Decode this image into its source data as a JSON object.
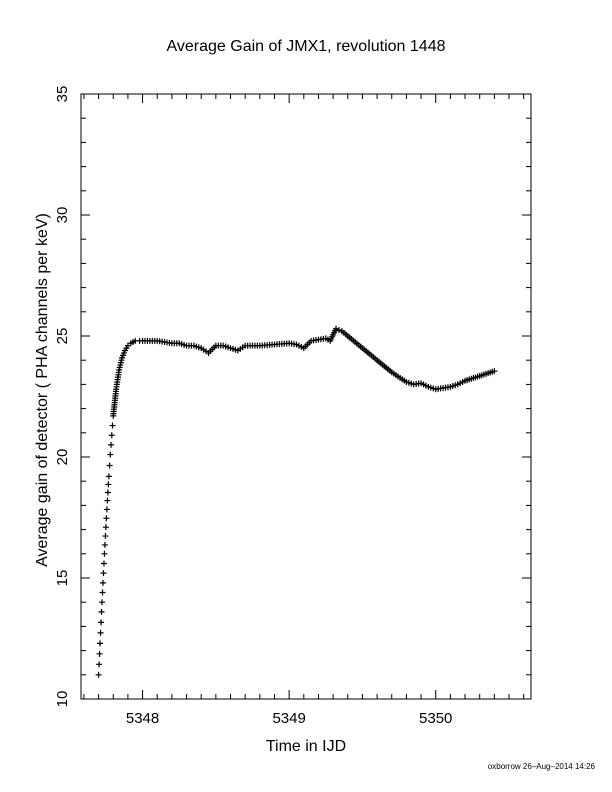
{
  "chart_data": {
    "type": "scatter",
    "title": "Average Gain of JMX1, revolution 1448",
    "xlabel": "Time in IJD",
    "ylabel": "Average gain of detector ( PHA channels per keV)",
    "xlim": [
      5347.58,
      5350.65
    ],
    "ylim": [
      10,
      35
    ],
    "xticks": [
      5348,
      5349,
      5350
    ],
    "yticks": [
      10,
      15,
      20,
      25,
      30,
      35
    ],
    "marker": "+",
    "color": "#000000",
    "series": [
      {
        "x": [
          5347.7,
          5347.71,
          5347.72,
          5347.73,
          5347.74,
          5347.75,
          5347.76,
          5347.77,
          5347.78,
          5347.79,
          5347.8,
          5347.82,
          5347.84,
          5347.86,
          5347.88,
          5347.9,
          5347.92,
          5347.95,
          5347.98,
          5348.0,
          5348.05,
          5348.1,
          5348.15,
          5348.2,
          5348.25,
          5348.3,
          5348.35,
          5348.4,
          5348.45,
          5348.5,
          5348.55,
          5348.6,
          5348.65,
          5348.7,
          5348.8,
          5348.9,
          5349.0,
          5349.05,
          5349.1,
          5349.15,
          5349.2,
          5349.25,
          5349.28,
          5349.32,
          5349.36,
          5349.4,
          5349.5,
          5349.6,
          5349.7,
          5349.8,
          5349.85,
          5349.9,
          5349.95,
          5350.0,
          5350.05,
          5350.1,
          5350.15,
          5350.2,
          5350.3,
          5350.4
        ],
        "y": [
          11.0,
          12.3,
          13.6,
          14.8,
          16.0,
          17.1,
          18.2,
          19.2,
          20.1,
          20.9,
          21.7,
          22.8,
          23.6,
          24.1,
          24.4,
          24.6,
          24.7,
          24.8,
          24.8,
          24.8,
          24.8,
          24.8,
          24.75,
          24.7,
          24.7,
          24.6,
          24.6,
          24.5,
          24.3,
          24.6,
          24.6,
          24.5,
          24.4,
          24.6,
          24.6,
          24.65,
          24.7,
          24.65,
          24.5,
          24.8,
          24.85,
          24.9,
          24.8,
          25.3,
          25.2,
          25.0,
          24.5,
          24.0,
          23.5,
          23.1,
          23.0,
          23.05,
          22.9,
          22.8,
          22.85,
          22.9,
          23.0,
          23.15,
          23.35,
          23.55
        ]
      }
    ]
  },
  "credit": "oxborrow 26–Aug–2014 14:26"
}
